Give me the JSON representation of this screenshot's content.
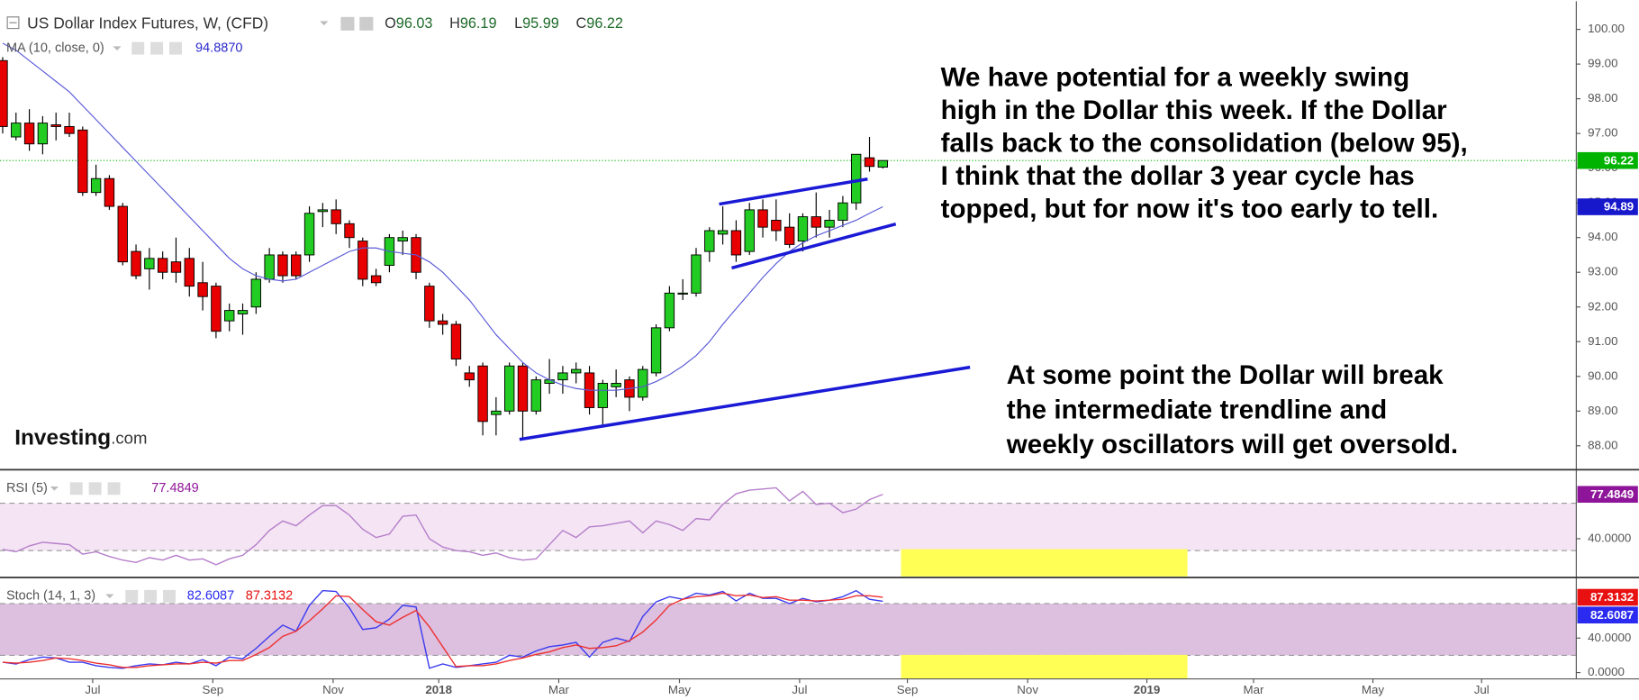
{
  "chart_data": [
    {
      "type": "candlestick",
      "title": "US Dollar Index Futures, W, (CFD)",
      "ohlc_labels": [
        "O",
        "H",
        "L",
        "C"
      ],
      "ohlc_values": [
        96.03,
        96.19,
        95.99,
        96.22
      ],
      "x": [
        0,
        1,
        2,
        3,
        4,
        5,
        6,
        7,
        8,
        9,
        10,
        11,
        12,
        13,
        14,
        15,
        16,
        17,
        18,
        19,
        20,
        21,
        22,
        23,
        24,
        25,
        26,
        27,
        28,
        29,
        30,
        31,
        32,
        33,
        34,
        35,
        36,
        37,
        38,
        39,
        40,
        41,
        42,
        43,
        44,
        45,
        46,
        47,
        48,
        49,
        50,
        51,
        52,
        53,
        54,
        55,
        56,
        57,
        58,
        59,
        60,
        61,
        62,
        63,
        64,
        65,
        66
      ],
      "open": [
        99.1,
        96.9,
        97.3,
        96.7,
        97.25,
        97.2,
        97.1,
        95.3,
        95.7,
        94.9,
        93.6,
        93.1,
        93.4,
        93.3,
        93.4,
        92.7,
        92.6,
        91.6,
        91.8,
        92.0,
        92.8,
        93.5,
        93.5,
        93.5,
        94.75,
        94.8,
        94.4,
        93.9,
        92.9,
        93.2,
        93.9,
        94.0,
        92.6,
        91.6,
        91.5,
        90.1,
        90.3,
        88.9,
        89.0,
        90.3,
        89.0,
        89.8,
        89.9,
        90.1,
        90.1,
        89.1,
        89.7,
        89.9,
        89.4,
        90.1,
        91.4,
        92.4,
        92.4,
        93.6,
        94.1,
        94.2,
        93.6,
        94.8,
        94.5,
        94.3,
        93.9,
        94.6,
        94.3,
        94.5,
        95.0,
        96.3,
        96.03
      ],
      "high": [
        99.2,
        97.6,
        97.7,
        97.5,
        97.6,
        97.6,
        97.2,
        96.1,
        95.8,
        95.0,
        93.8,
        93.7,
        93.6,
        94.0,
        93.7,
        93.3,
        92.7,
        92.1,
        92.1,
        93.0,
        93.7,
        93.6,
        93.6,
        94.9,
        95.0,
        95.1,
        94.5,
        94.0,
        93.1,
        94.1,
        94.2,
        94.1,
        92.7,
        91.8,
        91.6,
        90.3,
        90.4,
        89.4,
        90.4,
        90.4,
        90.0,
        90.5,
        90.3,
        90.4,
        90.3,
        89.9,
        90.2,
        90.0,
        90.3,
        91.5,
        92.6,
        92.8,
        93.7,
        94.3,
        94.9,
        94.5,
        95.0,
        95.1,
        95.1,
        94.7,
        94.7,
        95.3,
        94.8,
        95.2,
        96.4,
        96.9,
        96.19
      ],
      "low": [
        97.0,
        96.8,
        96.5,
        96.4,
        96.8,
        96.9,
        95.2,
        95.2,
        94.8,
        93.2,
        92.8,
        92.5,
        92.8,
        92.7,
        92.3,
        91.9,
        91.1,
        91.3,
        91.2,
        91.8,
        92.7,
        92.7,
        92.8,
        93.3,
        94.3,
        94.1,
        93.7,
        92.6,
        92.6,
        93.0,
        93.5,
        92.8,
        91.4,
        91.2,
        90.3,
        89.7,
        88.3,
        88.3,
        88.9,
        88.2,
        88.9,
        89.5,
        89.5,
        89.8,
        88.9,
        88.6,
        89.4,
        89.0,
        89.3,
        90.0,
        91.3,
        92.2,
        92.3,
        93.3,
        93.8,
        93.3,
        93.5,
        94.0,
        93.9,
        93.7,
        93.6,
        94.0,
        94.0,
        94.3,
        94.8,
        95.9,
        95.99
      ],
      "close": [
        97.2,
        97.3,
        96.7,
        97.3,
        97.2,
        97.0,
        95.3,
        95.7,
        94.9,
        93.3,
        92.9,
        93.4,
        93.0,
        93.0,
        92.6,
        92.3,
        91.3,
        91.9,
        91.9,
        92.8,
        93.5,
        92.9,
        92.9,
        94.7,
        94.8,
        94.4,
        94.0,
        92.8,
        92.7,
        94.0,
        94.0,
        93.0,
        91.6,
        91.5,
        90.5,
        89.9,
        88.7,
        89.0,
        90.3,
        89.0,
        89.9,
        89.9,
        90.1,
        90.2,
        89.1,
        89.8,
        89.8,
        89.4,
        90.2,
        91.4,
        92.4,
        92.4,
        93.5,
        94.2,
        94.2,
        93.5,
        94.8,
        94.3,
        94.2,
        93.8,
        94.6,
        94.3,
        94.5,
        95.0,
        96.4,
        96.05,
        96.22
      ],
      "up_color": "#22cc22",
      "down_color": "#e80000",
      "last_price_color": "#00b300",
      "ma": {
        "name": "MA (10, close, 0)",
        "value_label": "94.8870",
        "tag_label": "94.89",
        "color": "#5a5ad8",
        "values": [
          99.6,
          99.4,
          99.1,
          98.8,
          98.5,
          98.2,
          97.8,
          97.4,
          97.0,
          96.6,
          96.2,
          95.8,
          95.4,
          95.0,
          94.6,
          94.2,
          93.8,
          93.4,
          93.1,
          92.9,
          92.8,
          92.75,
          92.8,
          93.0,
          93.2,
          93.4,
          93.6,
          93.7,
          93.7,
          93.6,
          93.55,
          93.5,
          93.3,
          93.0,
          92.6,
          92.2,
          91.7,
          91.2,
          90.8,
          90.4,
          90.1,
          89.9,
          89.75,
          89.65,
          89.6,
          89.6,
          89.6,
          89.65,
          89.7,
          89.85,
          90.05,
          90.3,
          90.6,
          91.0,
          91.5,
          91.95,
          92.4,
          92.85,
          93.25,
          93.6,
          93.85,
          94.05,
          94.2,
          94.35,
          94.5,
          94.7,
          94.887
        ]
      },
      "xlim": [
        -0.2,
        118
      ],
      "ylim": [
        87.34,
        100.81
      ],
      "yticks": [
        {
          "value": 88,
          "label": "88.00"
        },
        {
          "value": 89,
          "label": "89.00"
        },
        {
          "value": 90,
          "label": "90.00"
        },
        {
          "value": 91,
          "label": "91.00"
        },
        {
          "value": 92,
          "label": "92.00"
        },
        {
          "value": 93,
          "label": "93.00"
        },
        {
          "value": 94,
          "label": "94.00"
        },
        {
          "value": 95,
          "label": "95.00"
        },
        {
          "value": 96,
          "label": "96.00"
        },
        {
          "value": 97,
          "label": "97.00"
        },
        {
          "value": 98,
          "label": "98.00"
        },
        {
          "value": 99,
          "label": "99.00"
        },
        {
          "value": 100,
          "label": "100.00"
        }
      ],
      "watermark": [
        "Investing",
        ".com"
      ],
      "annotations": [
        [
          "We have potential for a weekly swing",
          "high in the Dollar this week. If the Dollar",
          "falls back to the consolidation (below 95),",
          "I think that the dollar 3 year cycle has",
          "topped, but for now it's too early to tell."
        ],
        [
          "At some point the Dollar will break",
          "the intermediate trendline and",
          "weekly oscillators will get oversold."
        ]
      ]
    },
    {
      "type": "line",
      "title": "RSI (5)",
      "x": [
        0,
        1,
        2,
        3,
        4,
        5,
        6,
        7,
        8,
        9,
        10,
        11,
        12,
        13,
        14,
        15,
        16,
        17,
        18,
        19,
        20,
        21,
        22,
        23,
        24,
        25,
        26,
        27,
        28,
        29,
        30,
        31,
        32,
        33,
        34,
        35,
        36,
        37,
        38,
        39,
        40,
        41,
        42,
        43,
        44,
        45,
        46,
        47,
        48,
        49,
        50,
        51,
        52,
        53,
        54,
        55,
        56,
        57,
        58,
        59,
        60,
        61,
        62,
        63,
        64,
        65,
        66
      ],
      "series": [
        {
          "color": "#b57ec9",
          "tag_color": "#8e1599",
          "values": [
            31,
            29,
            34,
            37,
            36,
            35,
            27,
            29,
            25,
            22,
            20,
            24,
            22,
            26,
            22,
            23,
            18,
            23,
            26,
            35,
            47,
            55,
            51,
            60,
            68,
            68,
            60,
            48,
            41,
            44,
            59,
            60,
            40,
            33,
            30,
            29,
            26,
            28,
            24,
            22,
            23,
            35,
            47,
            41,
            50,
            51,
            53,
            55,
            45,
            55,
            52,
            47,
            57,
            56,
            69,
            78,
            81,
            82,
            83,
            72,
            80,
            69,
            70,
            62,
            65,
            73,
            77.4849
          ]
        }
      ],
      "xlim": [
        -0.2,
        118
      ],
      "ylim": [
        8.2,
        97.4
      ],
      "yticks": [
        {
          "value": 40,
          "label": "40.0000"
        }
      ],
      "band": [
        30,
        70
      ],
      "band_color": "#f4e4f4"
    },
    {
      "type": "line",
      "title": "Stoch (14, 1, 3)",
      "x": [
        0,
        1,
        2,
        3,
        4,
        5,
        6,
        7,
        8,
        9,
        10,
        11,
        12,
        13,
        14,
        15,
        16,
        17,
        18,
        19,
        20,
        21,
        22,
        23,
        24,
        25,
        26,
        27,
        28,
        29,
        30,
        31,
        32,
        33,
        34,
        35,
        36,
        37,
        38,
        39,
        40,
        41,
        42,
        43,
        44,
        45,
        46,
        47,
        48,
        49,
        50,
        51,
        52,
        53,
        54,
        55,
        56,
        57,
        58,
        59,
        60,
        61,
        62,
        63,
        64,
        65,
        66
      ],
      "series": [
        {
          "color": "#3b3bf0",
          "tag_color": "#2a2af0",
          "values": [
            12,
            10,
            15,
            18,
            17,
            12,
            12,
            8,
            6,
            5,
            8,
            10,
            9,
            12,
            10,
            15,
            8,
            18,
            16,
            28,
            42,
            55,
            48,
            78,
            95,
            94,
            75,
            50,
            52,
            62,
            78,
            76,
            5,
            10,
            6,
            8,
            10,
            12,
            20,
            18,
            25,
            30,
            32,
            35,
            18,
            35,
            40,
            36,
            65,
            82,
            88,
            85,
            92,
            90,
            94,
            83,
            92,
            86,
            86,
            80,
            86,
            82,
            84,
            88,
            95,
            85,
            82.6087
          ]
        },
        {
          "color": "#ee3030",
          "tag_color": "#e81010",
          "values": [
            12,
            11,
            12,
            14,
            17,
            16,
            14,
            11,
            9,
            6,
            6,
            8,
            9,
            10,
            10,
            12,
            11,
            14,
            14,
            21,
            29,
            42,
            48,
            60,
            74,
            89,
            88,
            73,
            59,
            55,
            64,
            72,
            53,
            30,
            7,
            8,
            8,
            10,
            14,
            17,
            21,
            24,
            29,
            32,
            28,
            29,
            31,
            37,
            47,
            61,
            78,
            85,
            88,
            89,
            92,
            89,
            90,
            87,
            88,
            84,
            84,
            83,
            84,
            85,
            89,
            89,
            87.3132
          ]
        }
      ],
      "xlim": [
        -0.2,
        118
      ],
      "ylim": [
        -7.3,
        109.1
      ],
      "yticks": [
        {
          "value": 40,
          "label": "40.0000"
        },
        {
          "value": 0,
          "label": "0.0000"
        }
      ],
      "xticks": [
        {
          "value": 6.75,
          "label": "Jul"
        },
        {
          "value": 15.76,
          "label": "Sep"
        },
        {
          "value": 24.78,
          "label": "Nov"
        },
        {
          "value": 32.7,
          "label": "2018"
        },
        {
          "value": 41.7,
          "label": "Mar"
        },
        {
          "value": 50.75,
          "label": "May"
        },
        {
          "value": 59.76,
          "label": "Jul"
        },
        {
          "value": 67.84,
          "label": "Sep"
        },
        {
          "value": 76.86,
          "label": "Nov"
        },
        {
          "value": 85.8,
          "label": "2019"
        },
        {
          "value": 93.8,
          "label": "Mar"
        },
        {
          "value": 102.75,
          "label": "May"
        },
        {
          "value": 110.9,
          "label": "Jul"
        }
      ],
      "band": [
        20,
        80
      ],
      "band_color": "#ddbfdf"
    }
  ]
}
